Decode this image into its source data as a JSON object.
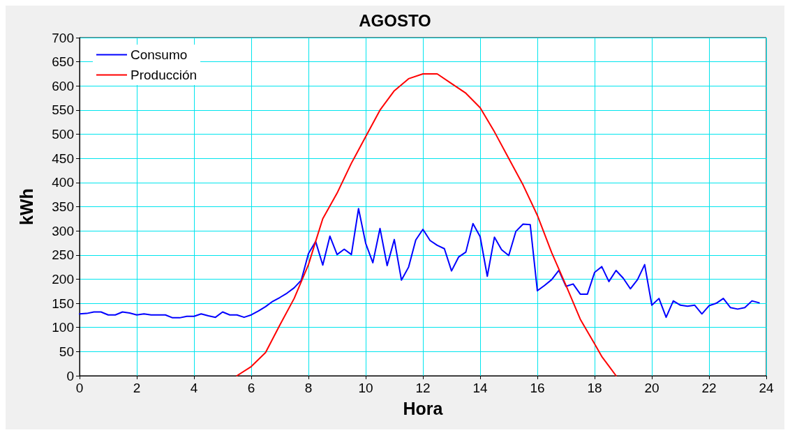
{
  "chart_data": {
    "type": "line",
    "title": "AGOSTO",
    "xlabel": "Hora",
    "ylabel": "kWh",
    "xlim": [
      0,
      24
    ],
    "xticks": [
      0,
      2,
      4,
      6,
      8,
      10,
      12,
      14,
      16,
      18,
      20,
      22,
      24
    ],
    "ylim": [
      0,
      700
    ],
    "yticks": [
      0,
      50,
      100,
      150,
      200,
      250,
      300,
      350,
      400,
      450,
      500,
      550,
      600,
      650,
      700
    ],
    "grid": true,
    "legend": "top left",
    "marker": "none",
    "line_style": "solid",
    "series": [
      {
        "name": "Consumo",
        "color": "#0000ff",
        "x": [
          0,
          0.25,
          0.5,
          0.75,
          1,
          1.25,
          1.5,
          1.75,
          2,
          2.25,
          2.5,
          2.75,
          3,
          3.25,
          3.5,
          3.75,
          4,
          4.25,
          4.5,
          4.75,
          5,
          5.25,
          5.5,
          5.75,
          6,
          6.25,
          6.5,
          6.75,
          7,
          7.25,
          7.5,
          7.75,
          8,
          8.25,
          8.5,
          8.75,
          9,
          9.25,
          9.5,
          9.75,
          10,
          10.25,
          10.5,
          10.75,
          11,
          11.25,
          11.5,
          11.75,
          12,
          12.25,
          12.5,
          12.75,
          13,
          13.25,
          13.5,
          13.75,
          14,
          14.25,
          14.5,
          14.75,
          15,
          15.25,
          15.5,
          15.75,
          16,
          16.25,
          16.5,
          16.75,
          17,
          17.25,
          17.5,
          17.75,
          18,
          18.25,
          18.5,
          18.75,
          19,
          19.25,
          19.5,
          19.75,
          20,
          20.25,
          20.5,
          20.75,
          21,
          21.25,
          21.5,
          21.75,
          22,
          22.25,
          22.5,
          22.75,
          23,
          23.25,
          23.5,
          23.75
        ],
        "values": [
          128,
          129,
          132,
          132,
          126,
          126,
          132,
          130,
          126,
          128,
          126,
          126,
          126,
          120,
          120,
          123,
          123,
          128,
          124,
          121,
          132,
          126,
          126,
          121,
          126,
          134,
          143,
          154,
          162,
          171,
          182,
          198,
          253,
          278,
          229,
          289,
          251,
          262,
          251,
          346,
          274,
          234,
          305,
          228,
          282,
          198,
          225,
          281,
          303,
          280,
          270,
          263,
          217,
          246,
          256,
          315,
          288,
          206,
          287,
          261,
          249,
          299,
          314,
          313,
          176,
          187,
          199,
          218,
          185,
          190,
          169,
          169,
          214,
          226,
          195,
          218,
          202,
          180,
          199,
          230,
          146,
          160,
          121,
          155,
          146,
          144,
          146,
          128,
          145,
          150,
          160,
          141,
          138,
          141,
          155,
          151
        ]
      },
      {
        "name": "Producción",
        "color": "#ff0000",
        "x": [
          5.5,
          6,
          6.5,
          7,
          7.5,
          8,
          8.25,
          8.5,
          9,
          9.5,
          10,
          10.5,
          11,
          11.5,
          12,
          12.5,
          13,
          13.5,
          14,
          14.5,
          15,
          15.5,
          16,
          16.5,
          17,
          17.5,
          18,
          18.25,
          18.5,
          18.75
        ],
        "values": [
          0,
          19,
          48,
          105,
          160,
          230,
          278,
          325,
          378,
          440,
          495,
          550,
          590,
          615,
          625,
          625,
          605,
          585,
          555,
          505,
          450,
          395,
          332,
          255,
          187,
          117,
          66,
          40,
          20,
          0
        ]
      }
    ]
  }
}
